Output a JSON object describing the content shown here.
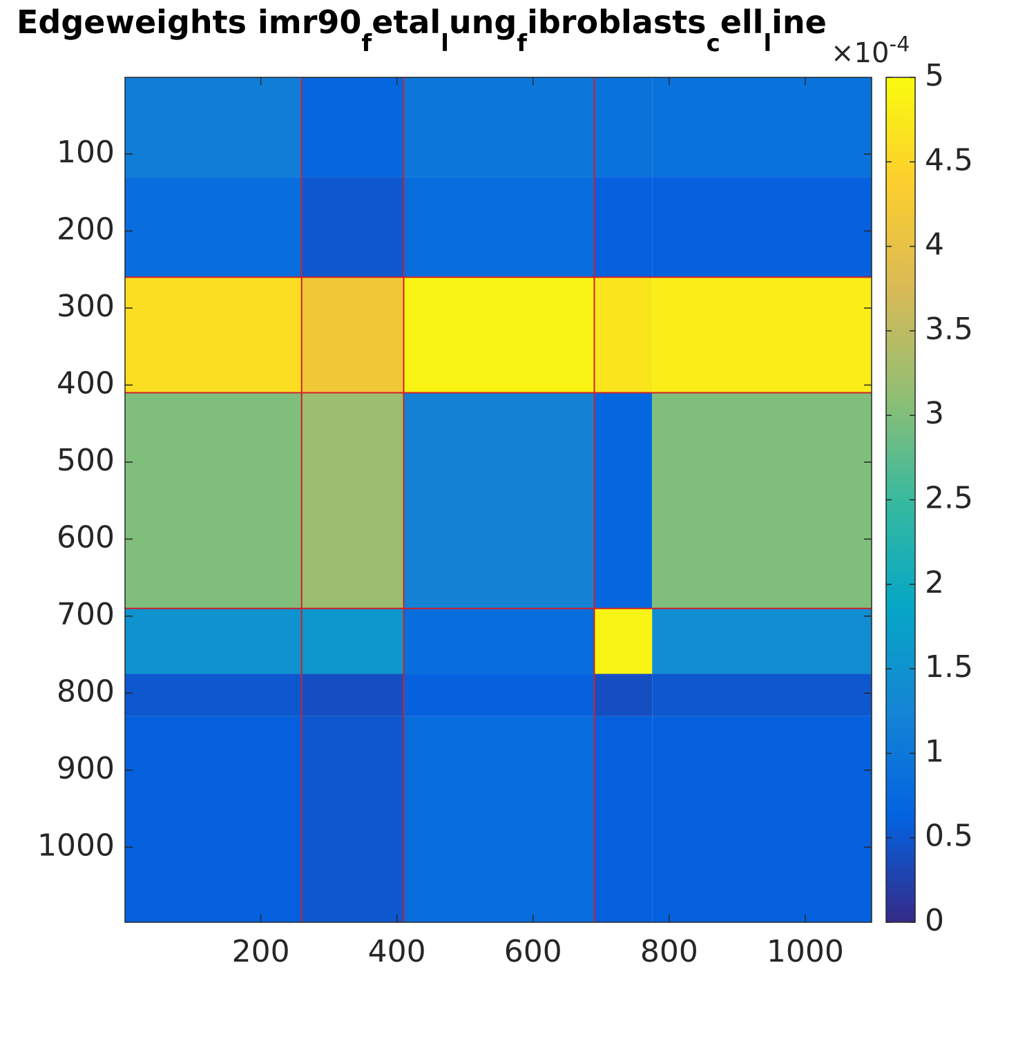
{
  "chart_data": {
    "type": "heatmap",
    "title_parts": [
      {
        "text": "Edgeweights imr90",
        "sub": false
      },
      {
        "text": "f",
        "sub": true
      },
      {
        "text": "etal",
        "sub": false
      },
      {
        "text": "l",
        "sub": true
      },
      {
        "text": "ung",
        "sub": false
      },
      {
        "text": "f",
        "sub": true
      },
      {
        "text": "ibroblasts",
        "sub": false
      },
      {
        "text": "c",
        "sub": true
      },
      {
        "text": "ell",
        "sub": false
      },
      {
        "text": "l",
        "sub": true
      },
      {
        "text": "ine",
        "sub": false
      }
    ],
    "x_edges": [
      0.5,
      260,
      410,
      690,
      775,
      1097.5
    ],
    "y_edges": [
      0.5,
      130,
      260,
      410,
      690,
      775,
      830,
      1097.5
    ],
    "z": [
      [
        1.1,
        0.7,
        1.0,
        0.9,
        0.9
      ],
      [
        0.8,
        0.5,
        0.8,
        0.6,
        0.6
      ],
      [
        4.6,
        4.2,
        4.9,
        4.7,
        4.8
      ],
      [
        3.0,
        3.2,
        1.2,
        0.7,
        3.0
      ],
      [
        1.5,
        1.6,
        0.8,
        4.9,
        1.4
      ],
      [
        0.5,
        0.4,
        0.6,
        0.4,
        0.5
      ],
      [
        0.6,
        0.5,
        0.8,
        0.6,
        0.6
      ]
    ],
    "xlim": [
      0.5,
      1097.5
    ],
    "ylim": [
      0.5,
      1097.5
    ],
    "y_reversed": true,
    "xticks": [
      200,
      400,
      600,
      800,
      1000
    ],
    "yticks": [
      100,
      200,
      300,
      400,
      500,
      600,
      700,
      800,
      900,
      1000
    ],
    "boundaries": [
      260,
      410,
      690
    ],
    "boundary_color": "#d0202a",
    "colormap": "parula",
    "clim": [
      0,
      5
    ],
    "cticks": [
      0,
      0.5,
      1,
      1.5,
      2,
      2.5,
      3,
      3.5,
      4,
      4.5,
      5
    ],
    "c_exponent_base": "×10",
    "c_exponent_power": "-4"
  }
}
